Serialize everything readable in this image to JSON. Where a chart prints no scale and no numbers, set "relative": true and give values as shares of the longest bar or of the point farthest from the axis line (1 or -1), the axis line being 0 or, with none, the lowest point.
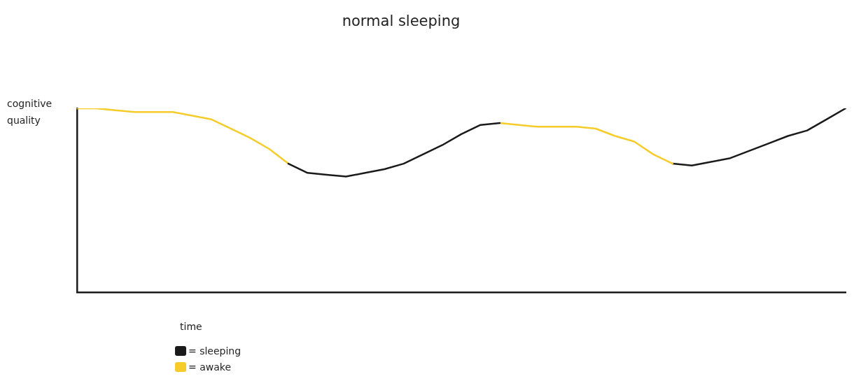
{
  "chart_data": {
    "type": "line",
    "title": "normal sleeping",
    "xlabel": "time",
    "ylabel": "cognitive quality",
    "relative": true,
    "legend": "bottom left",
    "categories": [
      null,
      null,
      null,
      null,
      null,
      null,
      null,
      null,
      null,
      null,
      null,
      null,
      null,
      null,
      null,
      null,
      null,
      null,
      null,
      null,
      null,
      null,
      null,
      null,
      null,
      null,
      null,
      null,
      null,
      null,
      null,
      null,
      null,
      null,
      null,
      null,
      null,
      null,
      null,
      null,
      null
    ],
    "series": [
      {
        "name": "= sleeping",
        "color": "#1a1a1a",
        "values": [
          null,
          null,
          null,
          null,
          null,
          null,
          null,
          null,
          null,
          null,
          null,
          0.7,
          0.65,
          0.64,
          0.63,
          0.65,
          0.67,
          0.7,
          0.75,
          0.8,
          0.86,
          0.91,
          0.92,
          null,
          null,
          null,
          null,
          null,
          null,
          null,
          null,
          null,
          null,
          null,
          null,
          null,
          null,
          null,
          null,
          null,
          null
        ]
      },
      {
        "name": "= awake",
        "color": "#f5cc2a",
        "values": [
          1.0,
          1.0,
          0.99,
          0.98,
          0.98,
          0.98,
          0.96,
          0.94,
          0.89,
          0.84,
          0.78,
          0.7,
          null,
          null,
          null,
          null,
          null,
          null,
          null,
          null,
          null,
          null,
          null,
          null,
          null,
          null,
          null,
          null,
          null,
          null,
          null,
          null,
          null,
          null,
          null,
          null,
          null,
          null,
          null,
          null,
          null
        ]
      },
      {
        "color": "#f5cc2a",
        "values": [
          null,
          null,
          null,
          null,
          null,
          null,
          null,
          null,
          null,
          null,
          null,
          null,
          null,
          null,
          null,
          null,
          null,
          null,
          null,
          null,
          null,
          null,
          0.92,
          0.91,
          0.9,
          0.9,
          0.9,
          0.89,
          0.85,
          0.82,
          0.75,
          0.7,
          null,
          null,
          null,
          null,
          null,
          null,
          null,
          null,
          null
        ]
      },
      {
        "color": "#1a1a1a",
        "values": [
          null,
          null,
          null,
          null,
          null,
          null,
          null,
          null,
          null,
          null,
          null,
          null,
          null,
          null,
          null,
          null,
          null,
          null,
          null,
          null,
          null,
          null,
          null,
          null,
          null,
          null,
          null,
          null,
          null,
          null,
          null,
          0.7,
          0.69,
          0.71,
          0.73,
          0.77,
          0.81,
          0.85,
          0.88,
          0.94,
          1.0
        ]
      }
    ]
  }
}
